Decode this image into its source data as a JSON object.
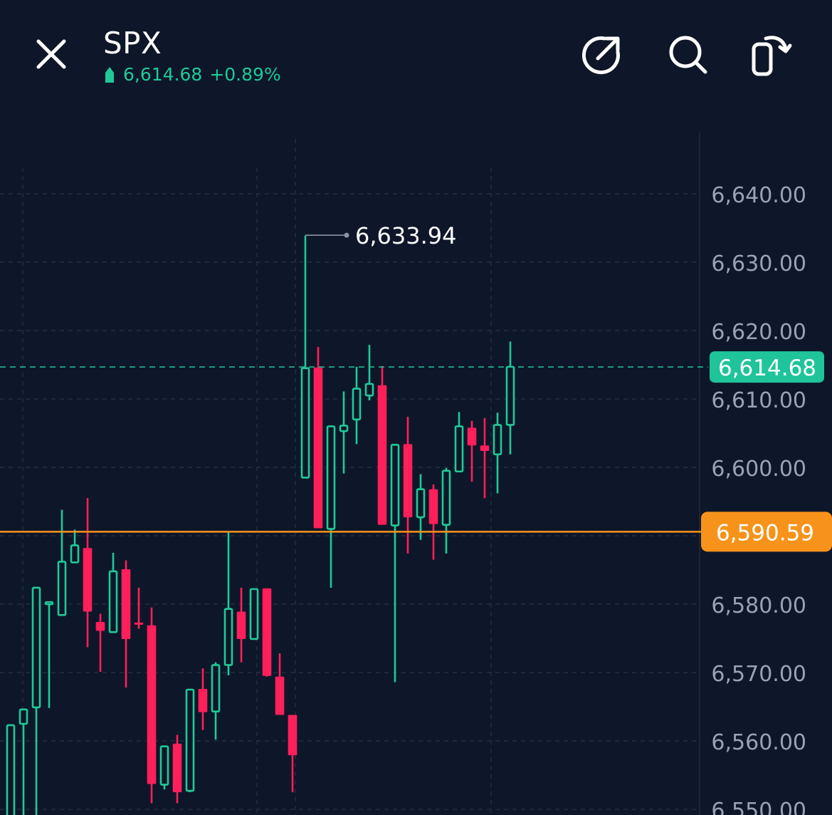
{
  "header": {
    "title": "SPX",
    "price": "6,614.68",
    "change": "+0.89%",
    "up_color": "#20c997",
    "icons": [
      "close-icon",
      "share-icon",
      "search-icon",
      "rotate-screen-icon"
    ]
  },
  "chart_data": {
    "type": "candlestick",
    "title": "",
    "ylim": [
      6550,
      6640
    ],
    "yticks": [
      {
        "value": 6640,
        "label": "6,640.00"
      },
      {
        "value": 6630,
        "label": "6,630.00"
      },
      {
        "value": 6620,
        "label": "6,620.00"
      },
      {
        "value": 6610,
        "label": "6,610.00"
      },
      {
        "value": 6600,
        "label": "6,600.00"
      },
      {
        "value": 6590,
        "label": "6,590.00"
      },
      {
        "value": 6580,
        "label": "6,580.00"
      },
      {
        "value": 6570,
        "label": "6,570.00"
      },
      {
        "value": 6560,
        "label": "6,560.00"
      },
      {
        "value": 6550,
        "label": "6,550.00"
      }
    ],
    "up_color": "#20c997",
    "down_color": "#ff1f5a",
    "last_price": {
      "value": 6614.68,
      "label": "6,614.68",
      "color": "#1fc49a"
    },
    "reference_line": {
      "value": 6590.59,
      "label": "6,590.59",
      "color": "#f7931a"
    },
    "high_marker": {
      "value": 6633.94,
      "label": "6,633.94"
    },
    "candles": [
      {
        "o": 6548.0,
        "h": 6562.0,
        "l": 6548.0,
        "c": 6562.3
      },
      {
        "o": 6562.5,
        "h": 6564.0,
        "l": 6548.0,
        "c": 6564.6
      },
      {
        "o": 6564.9,
        "h": 6582.5,
        "l": 6548.0,
        "c": 6582.4
      },
      {
        "o": 6580.0,
        "h": 6580.4,
        "l": 6564.8,
        "c": 6580.3
      },
      {
        "o": 6578.4,
        "h": 6593.8,
        "l": 6578.4,
        "c": 6586.2
      },
      {
        "o": 6586.1,
        "h": 6590.9,
        "l": 6586.1,
        "c": 6588.6
      },
      {
        "o": 6588.2,
        "h": 6595.5,
        "l": 6573.7,
        "c": 6578.9
      },
      {
        "o": 6577.4,
        "h": 6578.6,
        "l": 6570.1,
        "c": 6576.1
      },
      {
        "o": 6575.9,
        "h": 6587.5,
        "l": 6575.9,
        "c": 6584.8
      },
      {
        "o": 6585.1,
        "h": 6586.4,
        "l": 6567.8,
        "c": 6574.9
      },
      {
        "o": 6577.3,
        "h": 6582.4,
        "l": 6576.4,
        "c": 6577.0
      },
      {
        "o": 6576.9,
        "h": 6579.5,
        "l": 6550.9,
        "c": 6553.7
      },
      {
        "o": 6553.6,
        "h": 6559.2,
        "l": 6552.9,
        "c": 6559.2
      },
      {
        "o": 6559.6,
        "h": 6560.9,
        "l": 6550.9,
        "c": 6552.5
      },
      {
        "o": 6552.7,
        "h": 6567.6,
        "l": 6552.5,
        "c": 6567.5
      },
      {
        "o": 6567.6,
        "h": 6570.6,
        "l": 6561.6,
        "c": 6564.2
      },
      {
        "o": 6564.3,
        "h": 6571.5,
        "l": 6560.2,
        "c": 6571.1
      },
      {
        "o": 6571.1,
        "h": 6590.5,
        "l": 6569.6,
        "c": 6579.3
      },
      {
        "o": 6578.9,
        "h": 6582.4,
        "l": 6571.5,
        "c": 6574.9
      },
      {
        "o": 6574.9,
        "h": 6582.0,
        "l": 6574.9,
        "c": 6582.2
      },
      {
        "o": 6582.3,
        "h": 6582.3,
        "l": 6569.4,
        "c": 6569.5
      },
      {
        "o": 6569.4,
        "h": 6572.8,
        "l": 6563.8,
        "c": 6563.8
      },
      {
        "o": 6563.8,
        "h": 6563.8,
        "l": 6552.5,
        "c": 6557.9
      },
      {
        "o": 6598.5,
        "h": 6633.9,
        "l": 6598.5,
        "c": 6614.5
      },
      {
        "o": 6614.6,
        "h": 6617.6,
        "l": 6591.1,
        "c": 6591.1
      },
      {
        "o": 6591.0,
        "h": 6606.0,
        "l": 6582.4,
        "c": 6606.0
      },
      {
        "o": 6605.3,
        "h": 6611.1,
        "l": 6599.1,
        "c": 6606.1
      },
      {
        "o": 6607.0,
        "h": 6614.7,
        "l": 6603.4,
        "c": 6611.5
      },
      {
        "o": 6610.5,
        "h": 6617.9,
        "l": 6609.8,
        "c": 6612.2
      },
      {
        "o": 6612.0,
        "h": 6614.8,
        "l": 6591.6,
        "c": 6591.6
      },
      {
        "o": 6591.5,
        "h": 6603.3,
        "l": 6568.6,
        "c": 6603.3
      },
      {
        "o": 6603.4,
        "h": 6607.4,
        "l": 6587.4,
        "c": 6592.7
      },
      {
        "o": 6592.7,
        "h": 6599.0,
        "l": 6589.4,
        "c": 6596.8
      },
      {
        "o": 6596.8,
        "h": 6597.5,
        "l": 6586.5,
        "c": 6591.7
      },
      {
        "o": 6591.6,
        "h": 6599.9,
        "l": 6587.4,
        "c": 6599.5
      },
      {
        "o": 6599.4,
        "h": 6608.1,
        "l": 6599.3,
        "c": 6606.0
      },
      {
        "o": 6605.8,
        "h": 6606.8,
        "l": 6597.9,
        "c": 6603.2
      },
      {
        "o": 6603.2,
        "h": 6607.2,
        "l": 6595.5,
        "c": 6602.4
      },
      {
        "o": 6601.9,
        "h": 6608.0,
        "l": 6596.2,
        "c": 6606.2
      },
      {
        "o": 6606.2,
        "h": 6618.4,
        "l": 6601.9,
        "c": 6614.7
      }
    ]
  }
}
